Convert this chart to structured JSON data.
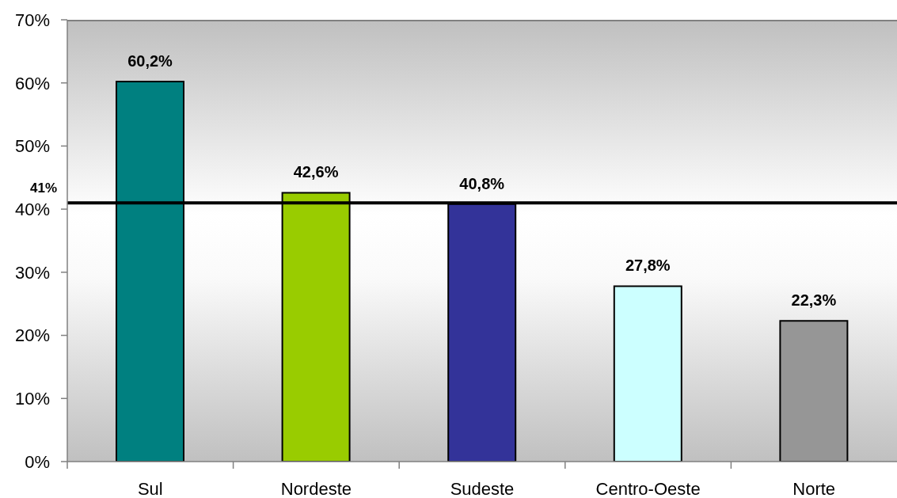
{
  "chart_data": {
    "type": "bar",
    "categories": [
      "Sul",
      "Nordeste",
      "Sudeste",
      "Centro-Oeste",
      "Norte"
    ],
    "values": [
      60.2,
      42.6,
      40.8,
      27.8,
      22.3
    ],
    "colors": [
      "#008080",
      "#99cc00",
      "#333399",
      "#ccffff",
      "#969696"
    ],
    "value_labels": [
      "60,2%",
      "42,6%",
      "40,8%",
      "27,8%",
      "22,3%"
    ],
    "ylim": [
      0,
      70
    ],
    "yticks": [
      {
        "value": 0,
        "label": "0%"
      },
      {
        "value": 10,
        "label": "10%"
      },
      {
        "value": 20,
        "label": "20%"
      },
      {
        "value": 30,
        "label": "30%"
      },
      {
        "value": 40,
        "label": "40%"
      },
      {
        "value": 50,
        "label": "50%"
      },
      {
        "value": 60,
        "label": "60%"
      },
      {
        "value": 70,
        "label": "70%"
      }
    ],
    "ref_lines": [
      {
        "axis": "y",
        "value": 41,
        "label": "41%",
        "color": "#000000"
      }
    ]
  }
}
